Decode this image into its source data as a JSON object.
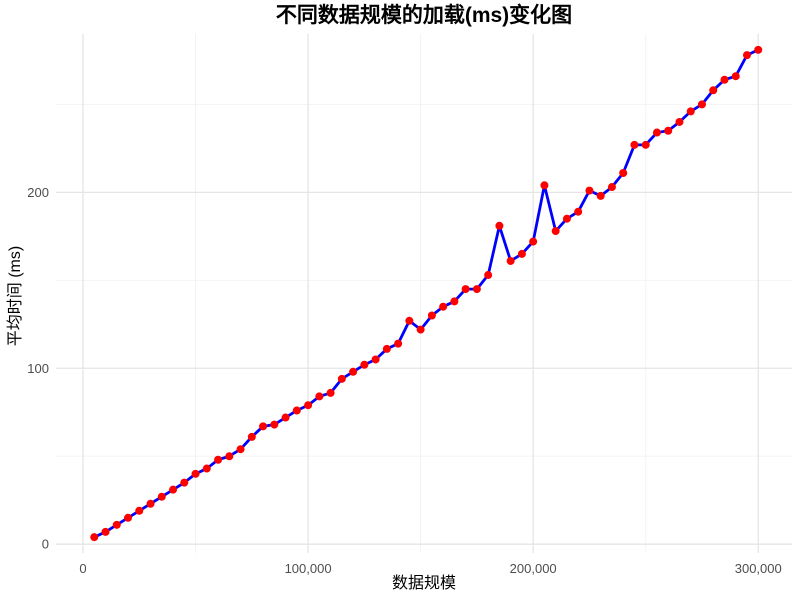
{
  "chart_data": {
    "type": "line",
    "title": "不同数据规模的加载(ms)变化图",
    "xlabel": "数据规模",
    "ylabel": "平均时间 (ms)",
    "xlim": [
      -12000,
      315000
    ],
    "ylim": [
      -5,
      290
    ],
    "x_ticks": [
      0,
      100000,
      200000,
      300000
    ],
    "x_tick_labels": [
      "0",
      "100,000",
      "200,000",
      "300,000"
    ],
    "x_minor": [
      50000,
      150000,
      250000
    ],
    "y_ticks": [
      0,
      100,
      200
    ],
    "y_tick_labels": [
      "0",
      "100",
      "200"
    ],
    "y_minor": [
      50,
      150,
      250
    ],
    "grid": true,
    "line_color": "#0000ff",
    "marker_color": "#ff0000",
    "series": [
      {
        "x": [
          5000,
          10000,
          15000,
          20000,
          25000,
          30000,
          35000,
          40000,
          45000,
          50000,
          55000,
          60000,
          65000,
          70000,
          75000,
          80000,
          85000,
          90000,
          95000,
          100000,
          105000,
          110000,
          115000,
          120000,
          125000,
          130000,
          135000,
          140000,
          145000,
          150000,
          155000,
          160000,
          165000,
          170000,
          175000,
          180000,
          185000,
          190000,
          195000,
          200000,
          205000,
          210000,
          215000,
          220000,
          225000,
          230000,
          235000,
          240000,
          245000,
          250000,
          255000,
          260000,
          265000,
          270000,
          275000,
          280000,
          285000,
          290000,
          295000,
          300000
        ],
        "values": [
          4,
          7,
          11,
          15,
          19,
          23,
          27,
          31,
          35,
          40,
          43,
          48,
          50,
          54,
          61,
          67,
          68,
          72,
          76,
          79,
          84,
          86,
          94,
          98,
          102,
          105,
          111,
          114,
          127,
          122,
          130,
          135,
          138,
          145,
          145,
          153,
          181,
          161,
          165,
          172,
          204,
          178,
          185,
          189,
          201,
          198,
          203,
          211,
          227,
          227,
          234,
          235,
          240,
          246,
          250,
          258,
          264,
          266,
          278,
          281
        ]
      }
    ]
  }
}
